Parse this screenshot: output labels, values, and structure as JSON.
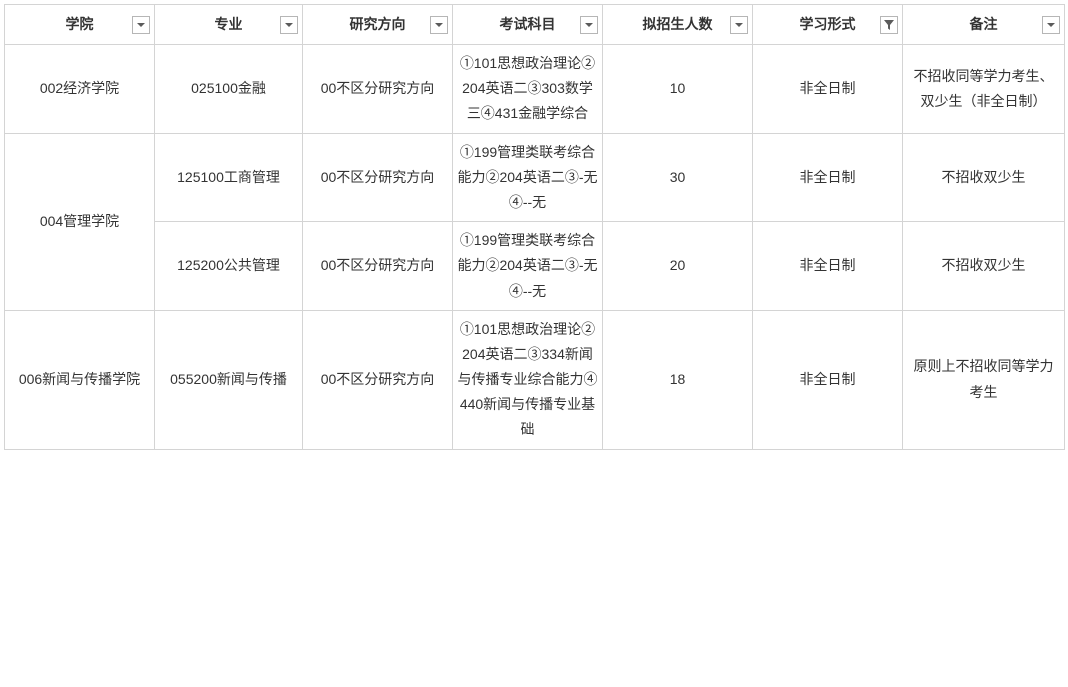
{
  "table": {
    "columns": [
      {
        "label": "学院",
        "filter": "dropdown"
      },
      {
        "label": "专业",
        "filter": "dropdown"
      },
      {
        "label": "研究方向",
        "filter": "dropdown"
      },
      {
        "label": "考试科目",
        "filter": "dropdown"
      },
      {
        "label": "拟招生人数",
        "filter": "dropdown"
      },
      {
        "label": "学习形式",
        "filter": "active"
      },
      {
        "label": "备注",
        "filter": "dropdown"
      }
    ],
    "rows": [
      {
        "college": "002经济学院",
        "college_rowspan": 1,
        "major": "025100金融",
        "direction": "00不区分研究方向",
        "subjects": "①101思想政治理论②204英语二③303数学三④431金融学综合",
        "enrollment": "10",
        "mode": "非全日制",
        "remark": "不招收同等学力考生、双少生（非全日制）"
      },
      {
        "college": "004管理学院",
        "college_rowspan": 2,
        "major": "125100工商管理",
        "direction": "00不区分研究方向",
        "subjects": "①199管理类联考综合能力②204英语二③-无④--无",
        "enrollment": "30",
        "mode": "非全日制",
        "remark": "不招收双少生"
      },
      {
        "college": null,
        "college_rowspan": 0,
        "major": "125200公共管理",
        "direction": "00不区分研究方向",
        "subjects": "①199管理类联考综合能力②204英语二③-无④--无",
        "enrollment": "20",
        "mode": "非全日制",
        "remark": "不招收双少生"
      },
      {
        "college": "006新闻与传播学院",
        "college_rowspan": 1,
        "major": "055200新闻与传播",
        "direction": "00不区分研究方向",
        "subjects": "①101思想政治理论②204英语二③334新闻与传播专业综合能力④440新闻与传播专业基础",
        "enrollment": "18",
        "mode": "非全日制",
        "remark": "原则上不招收同等学力考生"
      }
    ],
    "header_bg": "#ffffff",
    "border_color": "#d4d4d4",
    "font_color": "#333333",
    "font_size": 14
  }
}
